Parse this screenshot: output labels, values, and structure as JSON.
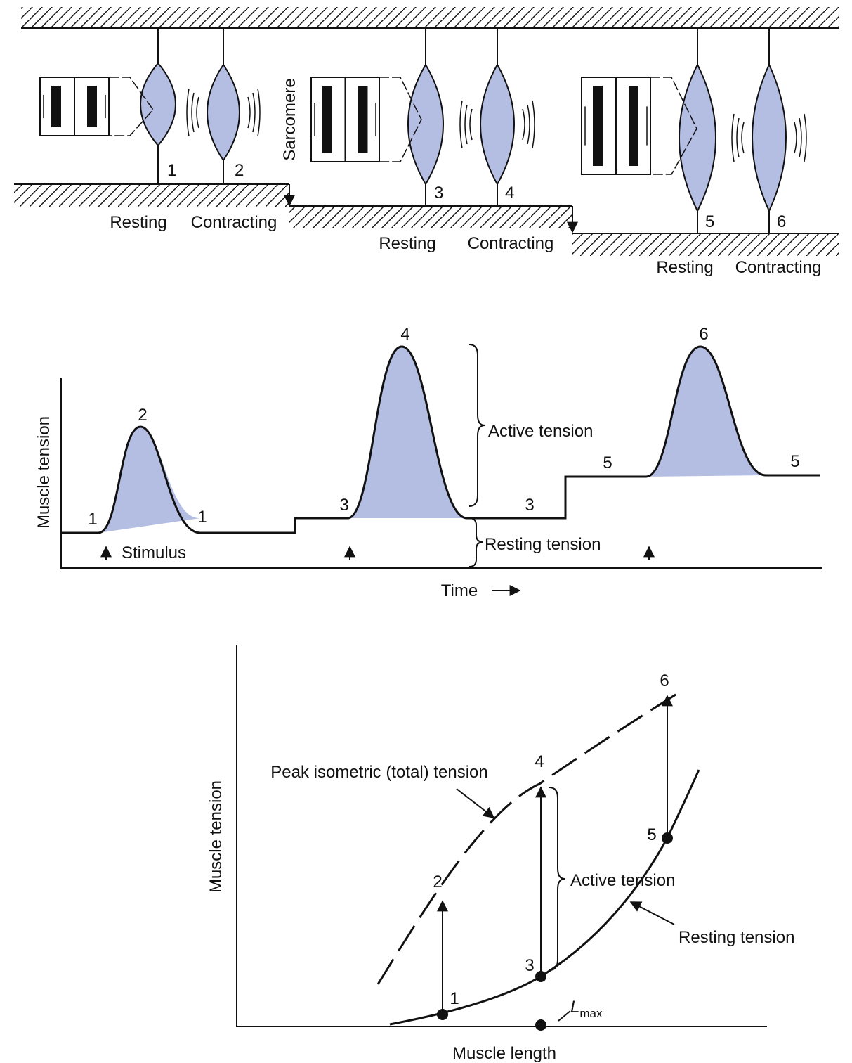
{
  "top_panel": {
    "sarcomere_label": "Sarcomere",
    "stages": [
      {
        "resting_number": "1",
        "contracting_number": "2",
        "resting_label": "Resting",
        "contracting_label": "Contracting"
      },
      {
        "resting_number": "3",
        "contracting_number": "4",
        "resting_label": "Resting",
        "contracting_label": "Contracting"
      },
      {
        "resting_number": "5",
        "contracting_number": "6",
        "resting_label": "Resting",
        "contracting_label": "Contracting"
      }
    ]
  },
  "middle_panel": {
    "y_axis_label": "Muscle tension",
    "x_axis_label": "Time",
    "point_labels": [
      "1",
      "2",
      "1",
      "3",
      "4",
      "3",
      "5",
      "6",
      "5"
    ],
    "active_tension": "Active tension",
    "resting_tension": "Resting tension",
    "stimulus": "Stimulus"
  },
  "bottom_panel": {
    "y_axis_label": "Muscle tension",
    "x_axis_label": "Muscle length",
    "peak_label": "Peak isometric (total) tension",
    "active_tension": "Active tension",
    "resting_tension": "Resting tension",
    "point_labels": [
      "1",
      "2",
      "3",
      "4",
      "5",
      "6"
    ],
    "lmax": {
      "main": "L",
      "sub": "max"
    }
  }
}
